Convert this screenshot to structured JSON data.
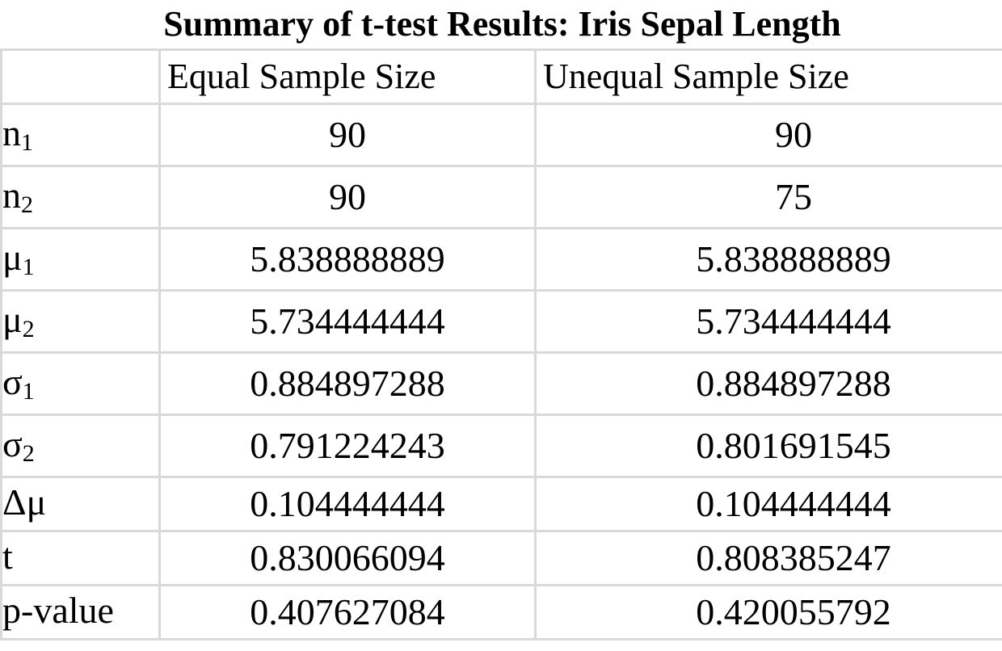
{
  "title": "Summary of t-test Results: Iris Sepal Length",
  "columns": [
    "",
    "Equal Sample Size",
    "Unequal Sample Size"
  ],
  "rows": [
    {
      "label": "n",
      "sub": "1",
      "equal": "90",
      "unequal": "90"
    },
    {
      "label": "n",
      "sub": "2",
      "equal": "90",
      "unequal": "75"
    },
    {
      "label": "μ",
      "sub": "1",
      "equal": "5.838888889",
      "unequal": "5.838888889"
    },
    {
      "label": "μ",
      "sub": "2",
      "equal": "5.734444444",
      "unequal": "5.734444444"
    },
    {
      "label": "σ",
      "sub": "1",
      "equal": "0.884897288",
      "unequal": "0.884897288"
    },
    {
      "label": "σ",
      "sub": "2",
      "equal": "0.791224243",
      "unequal": "0.801691545"
    },
    {
      "label": "Δμ",
      "sub": "",
      "equal": "0.104444444",
      "unequal": "0.104444444"
    },
    {
      "label": "t",
      "sub": "",
      "equal": "0.830066094",
      "unequal": "0.808385247"
    },
    {
      "label": "p-value",
      "sub": "",
      "equal": "0.407627084",
      "unequal": "0.420055792"
    }
  ]
}
